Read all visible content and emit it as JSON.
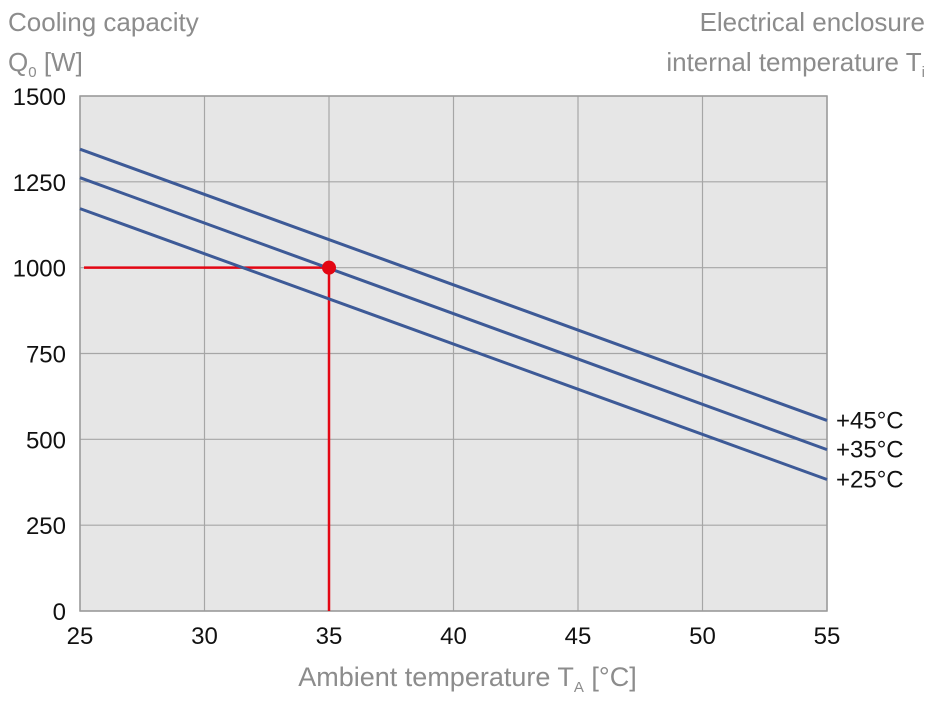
{
  "chart_data": {
    "type": "line",
    "ylabel_line1": "Cooling capacity",
    "ylabel_symbol": "Q",
    "ylabel_sub": "0",
    "ylabel_unit": "[W]",
    "legend_title_line1": "Electrical enclosure",
    "legend_title_line2": "internal temperature T",
    "legend_title_sub": "i",
    "xlabel_text": "Ambient temperature T",
    "xlabel_sub": "A",
    "xlabel_unit": "[°C]",
    "xlim": [
      25,
      55
    ],
    "ylim": [
      0,
      1500
    ],
    "x_ticks": [
      "25",
      "30",
      "35",
      "40",
      "45",
      "50",
      "55"
    ],
    "y_ticks": [
      "0",
      "250",
      "500",
      "750",
      "1000",
      "1250",
      "1500"
    ],
    "x": [
      25,
      55
    ],
    "series": [
      {
        "name": "+45°C",
        "values": [
          1345,
          555
        ]
      },
      {
        "name": "+35°C",
        "values": [
          1262,
          470
        ]
      },
      {
        "name": "+25°C",
        "values": [
          1172,
          383
        ]
      }
    ],
    "annotation": {
      "x": 35,
      "y": 1000
    },
    "grid": true,
    "colors": {
      "series": "#3d5a97",
      "annotation": "#e30613",
      "plot_bg": "#e6e6e6",
      "grid": "#a6a6a6"
    }
  }
}
